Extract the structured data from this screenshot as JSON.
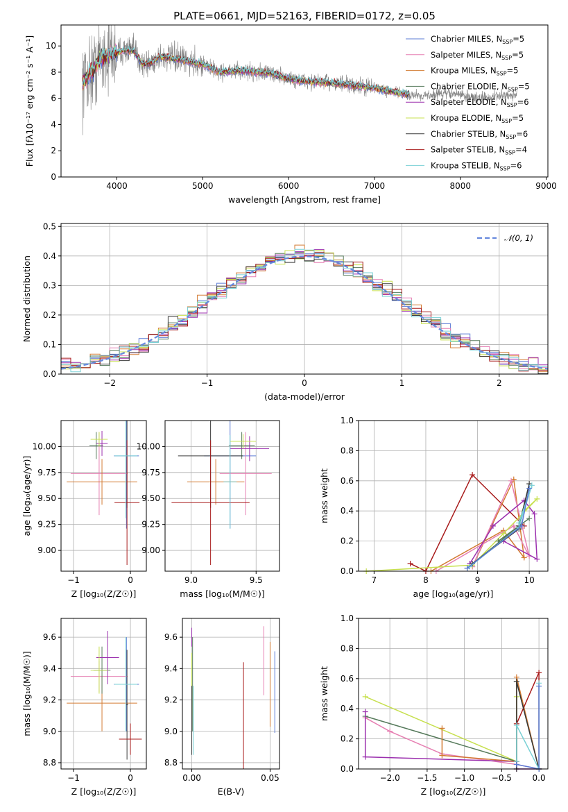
{
  "colors": {
    "Chabrier MILES": "#5b7bd5",
    "Salpeter MILES": "#e67fb2",
    "Kroupa MILES": "#d37b33",
    "Chabrier ELODIE": "#567a5b",
    "Salpeter ELODIE": "#9b2fae",
    "Kroupa ELODIE": "#c7e04f",
    "Chabrier STELIB": "#3a3a3a",
    "Salpeter STELIB": "#a81b1b",
    "Kroupa STELIB": "#7ad1d6",
    "data": "#808080",
    "normal": "#6688dd"
  },
  "chart_data": [
    {
      "id": "spectrum",
      "type": "line",
      "title": "PLATE=0661, MJD=52163, FIBERID=0172, z=0.05",
      "xlabel": "wavelength [Angstrom, rest frame]",
      "ylabel": "Flux [fλ10⁻¹⁷ erg cm⁻² s⁻¹ A⁻¹]",
      "xlim": [
        3350,
        9020
      ],
      "ylim": [
        0,
        11.6
      ],
      "xticks": [
        4000,
        5000,
        6000,
        7000,
        8000,
        9000
      ],
      "yticks": [
        0,
        2,
        4,
        6,
        8,
        10
      ],
      "continuum_x": [
        3600,
        3650,
        3700,
        3750,
        3800,
        3900,
        4000,
        4100,
        4200,
        4300,
        4400,
        4500,
        4700,
        5000,
        5200,
        5500,
        5800,
        6000,
        6200,
        6500,
        6700,
        7000,
        7200,
        7400,
        7600,
        7800,
        8000,
        8200,
        8500,
        8700
      ],
      "continuum_y": [
        7.2,
        7.6,
        8.0,
        8.4,
        9.1,
        9.3,
        9.5,
        9.7,
        9.6,
        8.6,
        8.7,
        9.2,
        9.0,
        8.6,
        8.0,
        8.1,
        7.9,
        7.5,
        7.3,
        7.2,
        7.0,
        6.8,
        6.5,
        6.3,
        6.2,
        6.4,
        6.3,
        6.0,
        6.2,
        6.3
      ],
      "data_range_x": [
        3600,
        8660
      ],
      "legend_position": "upper right",
      "legend": [
        {
          "model": "Chabrier MILES",
          "n_ssp": 5
        },
        {
          "model": "Salpeter MILES",
          "n_ssp": 5
        },
        {
          "model": "Kroupa MILES",
          "n_ssp": 5
        },
        {
          "model": "Chabrier ELODIE",
          "n_ssp": 5
        },
        {
          "model": "Salpeter ELODIE",
          "n_ssp": 6
        },
        {
          "model": "Kroupa ELODIE",
          "n_ssp": 5
        },
        {
          "model": "Chabrier STELIB",
          "n_ssp": 6
        },
        {
          "model": "Salpeter STELIB",
          "n_ssp": 4
        },
        {
          "model": "Kroupa STELIB",
          "n_ssp": 6
        }
      ],
      "legend_prefix": "N",
      "legend_sub": "SSP"
    },
    {
      "id": "residuals",
      "type": "histogram",
      "xlabel": "(data-model)/error",
      "ylabel": "Normed distribution",
      "xlim": [
        -2.5,
        2.5
      ],
      "ylim": [
        0,
        0.51
      ],
      "xticks": [
        -2,
        -1,
        0,
        1,
        2
      ],
      "yticks": [
        0.0,
        0.1,
        0.2,
        0.3,
        0.4,
        0.5
      ],
      "bin_width": 0.1,
      "legend": "𝒩(0, 1)",
      "legend_position": "upper right",
      "grid": true
    },
    {
      "id": "age_vs_Z",
      "type": "errorbar",
      "xlabel": "Z [log₁₀(Z/Z☉)]",
      "ylabel": "age  [log₁₀(age/yr)]",
      "xlim": [
        -1.22,
        0.28
      ],
      "ylim": [
        8.8,
        10.25
      ],
      "xticks": [
        -1,
        0
      ],
      "yticks": [
        9.0,
        9.25,
        9.5,
        9.75,
        10.0
      ],
      "grid": true,
      "points": [
        {
          "model": "Chabrier MILES",
          "x": -0.07,
          "y": 9.91,
          "xerr": 0.22,
          "yerr": 0.7
        },
        {
          "model": "Salpeter MILES",
          "x": -0.55,
          "y": 9.74,
          "xerr": 0.5,
          "yerr": 0.4
        },
        {
          "model": "Kroupa MILES",
          "x": -0.5,
          "y": 9.66,
          "xerr": 0.62,
          "yerr": 0.22
        },
        {
          "model": "Chabrier ELODIE",
          "x": -0.6,
          "y": 10.01,
          "xerr": 0.12,
          "yerr": 0.13
        },
        {
          "model": "Salpeter ELODIE",
          "x": -0.5,
          "y": 10.03,
          "xerr": 0.1,
          "yerr": 0.12
        },
        {
          "model": "Kroupa ELODIE",
          "x": -0.55,
          "y": 10.07,
          "xerr": 0.15,
          "yerr": 0.07
        },
        {
          "model": "Chabrier STELIB",
          "x": -0.06,
          "y": 9.91,
          "xerr": 0.02,
          "yerr": 0.5
        },
        {
          "model": "Salpeter STELIB",
          "x": -0.06,
          "y": 9.46,
          "xerr": 0.22,
          "yerr": 0.6
        },
        {
          "model": "Kroupa STELIB",
          "x": -0.08,
          "y": 9.91,
          "xerr": 0.2,
          "yerr": 0.6
        }
      ]
    },
    {
      "id": "age_vs_mass",
      "type": "errorbar",
      "xlabel": "mass [log₁₀(M/M☉)]",
      "ylabel": "",
      "xlim": [
        8.8,
        9.68
      ],
      "ylim": [
        8.8,
        10.25
      ],
      "xticks": [
        9.0,
        9.5
      ],
      "yticks": [
        9.0,
        9.25,
        9.5,
        9.75,
        10.0
      ],
      "grid": true,
      "points": [
        {
          "model": "Chabrier MILES",
          "x": 9.3,
          "y": 9.91,
          "xerr": 0.2,
          "yerr": 0.7
        },
        {
          "model": "Salpeter MILES",
          "x": 9.42,
          "y": 9.74,
          "xerr": 0.2,
          "yerr": 0.4
        },
        {
          "model": "Kroupa MILES",
          "x": 9.19,
          "y": 9.66,
          "xerr": 0.22,
          "yerr": 0.22
        },
        {
          "model": "Chabrier ELODIE",
          "x": 9.39,
          "y": 10.01,
          "xerr": 0.1,
          "yerr": 0.13
        },
        {
          "model": "Salpeter ELODIE",
          "x": 9.45,
          "y": 9.98,
          "xerr": 0.15,
          "yerr": 0.12
        },
        {
          "model": "Kroupa ELODIE",
          "x": 9.4,
          "y": 10.05,
          "xerr": 0.1,
          "yerr": 0.07
        },
        {
          "model": "Chabrier STELIB",
          "x": 9.15,
          "y": 9.91,
          "xerr": 0.25,
          "yerr": 0.5
        },
        {
          "model": "Salpeter STELIB",
          "x": 9.15,
          "y": 9.46,
          "xerr": 0.3,
          "yerr": 0.6
        },
        {
          "model": "Kroupa STELIB",
          "x": 9.3,
          "y": 9.66,
          "xerr": 0.05,
          "yerr": 0.45
        }
      ]
    },
    {
      "id": "weight_vs_age",
      "type": "line",
      "xlabel": "age  [log₁₀(age/yr)]",
      "ylabel": "mass weight",
      "xlim": [
        6.7,
        10.36
      ],
      "ylim": [
        0,
        1.0
      ],
      "xticks": [
        7,
        8,
        9,
        10
      ],
      "yticks": [
        0.0,
        0.2,
        0.4,
        0.6,
        0.8,
        1.0
      ],
      "grid": true,
      "series": [
        {
          "model": "Salpeter STELIB",
          "x": [
            7.7,
            8.0,
            8.9,
            9.9
          ],
          "y": [
            0.05,
            0.0,
            0.64,
            0.3
          ]
        },
        {
          "model": "Kroupa MILES",
          "x": [
            8.9,
            9.7,
            9.9,
            9.5,
            8.1
          ],
          "y": [
            0.03,
            0.61,
            0.09,
            0.27,
            0.0
          ]
        },
        {
          "model": "Salpeter MILES",
          "x": [
            8.9,
            9.65,
            10.0,
            9.7,
            8.2
          ],
          "y": [
            0.03,
            0.6,
            0.1,
            0.3,
            0.0
          ]
        },
        {
          "model": "Salpeter ELODIE",
          "x": [
            8.85,
            9.3,
            9.9,
            10.1,
            10.15,
            9.5
          ],
          "y": [
            0.05,
            0.3,
            0.47,
            0.38,
            0.08,
            0.2
          ]
        },
        {
          "model": "Kroupa ELODIE",
          "x": [
            6.85,
            8.9,
            9.5,
            10.15,
            9.9
          ],
          "y": [
            0.0,
            0.04,
            0.25,
            0.48,
            0.4
          ]
        },
        {
          "model": "Chabrier ELODIE",
          "x": [
            8.8,
            9.8,
            10.0,
            9.4
          ],
          "y": [
            0.02,
            0.3,
            0.35,
            0.2
          ]
        },
        {
          "model": "Chabrier STELIB",
          "x": [
            8.9,
            9.8,
            10.0,
            9.8
          ],
          "y": [
            0.05,
            0.28,
            0.58,
            0.3
          ]
        },
        {
          "model": "Kroupa STELIB",
          "x": [
            8.85,
            9.8,
            10.05,
            9.8
          ],
          "y": [
            0.03,
            0.29,
            0.57,
            0.32
          ]
        },
        {
          "model": "Chabrier MILES",
          "x": [
            8.8,
            9.85,
            10.0
          ],
          "y": [
            0.02,
            0.3,
            0.55
          ]
        }
      ]
    },
    {
      "id": "mass_vs_Z",
      "type": "errorbar",
      "xlabel": "Z [log₁₀(Z/Z☉)]",
      "ylabel": "mass [log₁₀(M/M☉)]",
      "xlim": [
        -1.22,
        0.28
      ],
      "ylim": [
        8.76,
        9.72
      ],
      "xticks": [
        -1,
        0
      ],
      "yticks": [
        8.8,
        9.0,
        9.2,
        9.4,
        9.6
      ],
      "grid": true,
      "points": [
        {
          "model": "Chabrier MILES",
          "x": -0.07,
          "y": 9.3,
          "xerr": 0.22,
          "yerr": 0.3
        },
        {
          "model": "Salpeter MILES",
          "x": -0.55,
          "y": 9.35,
          "xerr": 0.5,
          "yerr": 0.1
        },
        {
          "model": "Kroupa MILES",
          "x": -0.5,
          "y": 9.18,
          "xerr": 0.62,
          "yerr": 0.18
        },
        {
          "model": "Chabrier ELODIE",
          "x": -0.5,
          "y": 9.39,
          "xerr": 0.15,
          "yerr": 0.15
        },
        {
          "model": "Salpeter ELODIE",
          "x": -0.4,
          "y": 9.47,
          "xerr": 0.2,
          "yerr": 0.17
        },
        {
          "model": "Kroupa ELODIE",
          "x": -0.55,
          "y": 9.39,
          "xerr": 0.15,
          "yerr": 0.15
        },
        {
          "model": "Chabrier STELIB",
          "x": -0.06,
          "y": 9.17,
          "xerr": 0.02,
          "yerr": 0.35
        },
        {
          "model": "Salpeter STELIB",
          "x": 0.0,
          "y": 8.95,
          "xerr": 0.2,
          "yerr": 0.1
        },
        {
          "model": "Kroupa STELIB",
          "x": -0.08,
          "y": 9.3,
          "xerr": 0.2,
          "yerr": 0.3
        }
      ]
    },
    {
      "id": "mass_vs_EBV",
      "type": "errorbar",
      "xlabel": "E(B-V)",
      "ylabel": "",
      "xlim": [
        -0.006,
        0.056
      ],
      "ylim": [
        8.76,
        9.72
      ],
      "xticks": [
        0.0,
        0.05
      ],
      "yticks": [
        8.8,
        9.0,
        9.2,
        9.4,
        9.6
      ],
      "grid": true,
      "points": [
        {
          "model": "Chabrier MILES",
          "x": 0.053,
          "y": 9.25,
          "xerr": 0,
          "yerr": 0.26
        },
        {
          "model": "Salpeter MILES",
          "x": 0.046,
          "y": 9.45,
          "xerr": 0,
          "yerr": 0.22
        },
        {
          "model": "Kroupa MILES",
          "x": 0.05,
          "y": 9.3,
          "xerr": 0,
          "yerr": 0.27
        },
        {
          "model": "Chabrier ELODIE",
          "x": 0.0005,
          "y": 9.3,
          "xerr": 0,
          "yerr": 0.3
        },
        {
          "model": "Salpeter ELODIE",
          "x": 0.0,
          "y": 9.6,
          "xerr": 0,
          "yerr": 0.06
        },
        {
          "model": "Kroupa ELODIE",
          "x": 0.0,
          "y": 9.3,
          "xerr": 0,
          "yerr": 0.2
        },
        {
          "model": "Chabrier STELIB",
          "x": 0.0,
          "y": 9.07,
          "xerr": 0,
          "yerr": 0.22
        },
        {
          "model": "Salpeter STELIB",
          "x": 0.033,
          "y": 9.07,
          "xerr": 0,
          "yerr": 0.37
        },
        {
          "model": "Kroupa STELIB",
          "x": 0.001,
          "y": 9.07,
          "xerr": 0,
          "yerr": 0.22
        }
      ]
    },
    {
      "id": "weight_vs_Z",
      "type": "line",
      "xlabel": "Z [log₁₀(Z/Z☉)]",
      "ylabel": "mass weight",
      "xlim": [
        -2.42,
        0.12
      ],
      "ylim": [
        0,
        1.0
      ],
      "xticks": [
        -2.0,
        -1.5,
        -1.0,
        -0.5,
        0.0
      ],
      "yticks": [
        0.0,
        0.2,
        0.4,
        0.6,
        0.8,
        1.0
      ],
      "grid": true,
      "series": [
        {
          "model": "Kroupa ELODIE",
          "x": [
            -2.33,
            -0.3,
            -0.3
          ],
          "y": [
            0.48,
            0.05,
            0.48
          ]
        },
        {
          "model": "Chabrier ELODIE",
          "x": [
            -2.33,
            -0.3,
            -0.3,
            0.0
          ],
          "y": [
            0.35,
            0.05,
            0.58,
            0.0
          ]
        },
        {
          "model": "Salpeter MILES",
          "x": [
            -2.33,
            -2.0,
            -1.3,
            -0.3,
            0.0
          ],
          "y": [
            0.34,
            0.25,
            0.1,
            0.03,
            0.0
          ]
        },
        {
          "model": "Salpeter ELODIE",
          "x": [
            -2.33,
            -2.33,
            -0.3,
            -0.3,
            0.0
          ],
          "y": [
            0.38,
            0.08,
            0.05,
            0.0,
            0.0
          ]
        },
        {
          "model": "Kroupa MILES",
          "x": [
            -1.3,
            -1.3,
            -0.3,
            -0.3,
            0.0
          ],
          "y": [
            0.27,
            0.09,
            0.05,
            0.61,
            0.0
          ]
        },
        {
          "model": "Salpeter STELIB",
          "x": [
            -0.3,
            0.0,
            0.0
          ],
          "y": [
            0.3,
            0.64,
            0.0
          ]
        },
        {
          "model": "Chabrier STELIB",
          "x": [
            -0.3,
            -0.3,
            0.0
          ],
          "y": [
            0.0,
            0.58,
            0.0
          ]
        },
        {
          "model": "Kroupa STELIB",
          "x": [
            -0.3,
            -0.3,
            0.0,
            0.0
          ],
          "y": [
            0.05,
            0.29,
            0.0,
            0.57
          ]
        },
        {
          "model": "Chabrier MILES",
          "x": [
            -0.3,
            0.0,
            0.0
          ],
          "y": [
            0.03,
            0.0,
            0.55
          ]
        }
      ]
    }
  ]
}
